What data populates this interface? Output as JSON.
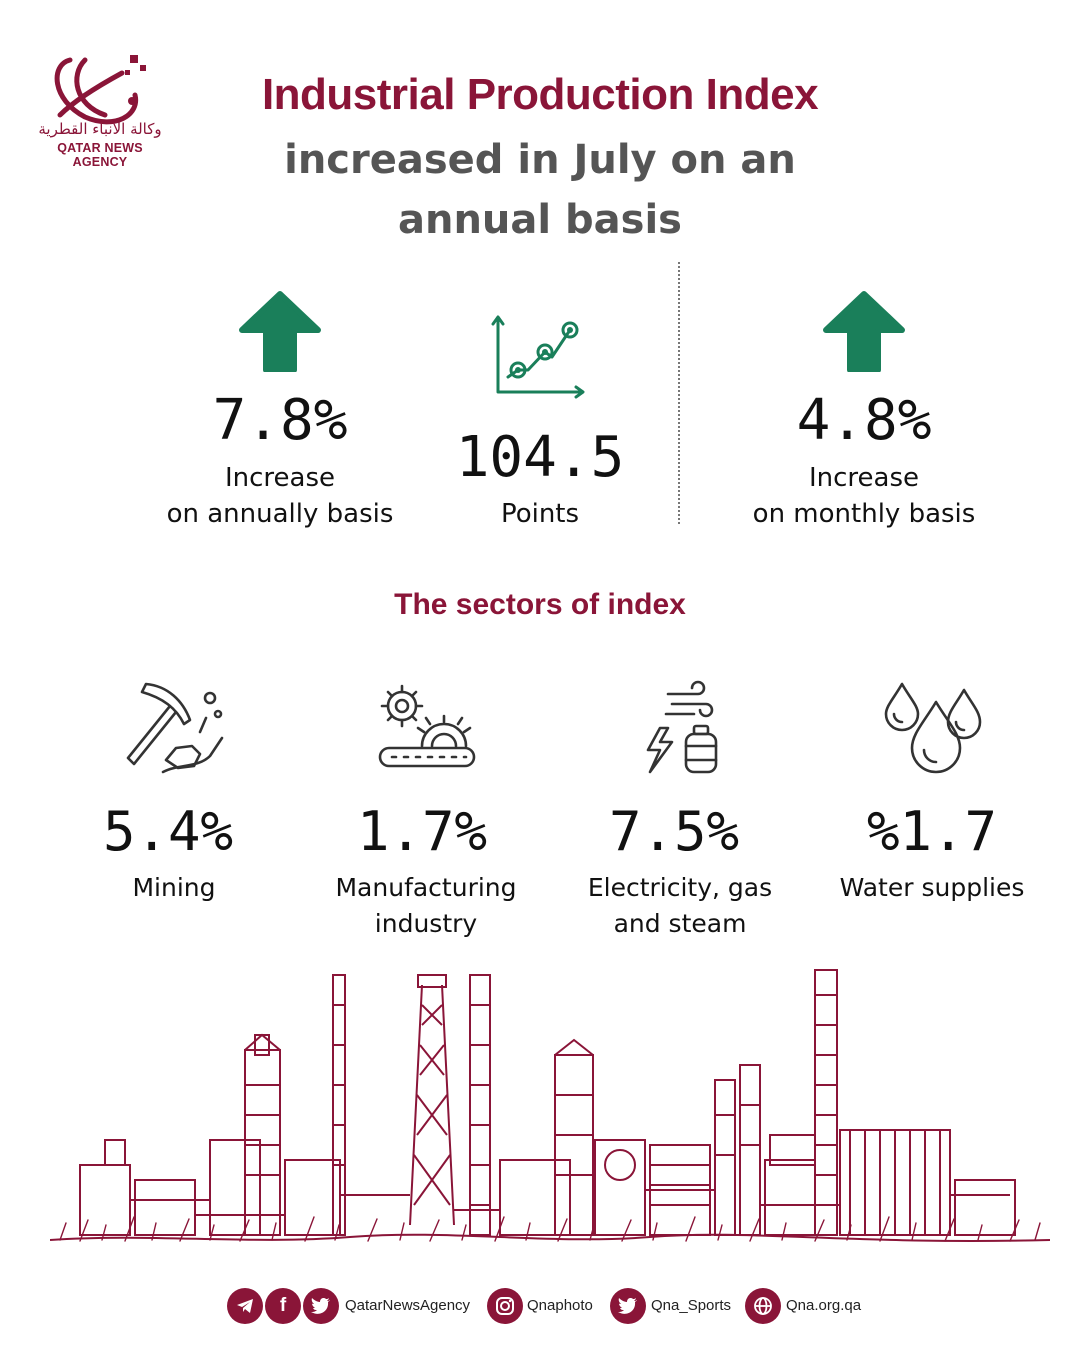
{
  "brand": {
    "name_ar": "وكالة الأنباء القطرية",
    "name_en": "QATAR NEWS AGENCY",
    "color": "#8a1538"
  },
  "headline": {
    "title": "Industrial Production Index",
    "subtitle_line1": "increased in July on an",
    "subtitle_line2": "annual basis"
  },
  "stats": {
    "annual": {
      "value": "7.8%",
      "label_line1": "Increase",
      "label_line2": "on annually basis",
      "icon": "up-arrow-icon"
    },
    "points": {
      "value": "104.5",
      "label": "Points",
      "icon": "growth-chart-icon"
    },
    "monthly": {
      "value": "4.8%",
      "label_line1": "Increase",
      "label_line2": "on monthly basis",
      "icon": "up-arrow-icon"
    },
    "accent_green": "#1a7f5a"
  },
  "sectors": {
    "title": "The sectors of index",
    "items": [
      {
        "value": "5.4%",
        "label_line1": "Mining",
        "label_line2": "",
        "icon": "pickaxe-icon"
      },
      {
        "value": "1.7%",
        "label_line1": "Manufacturing",
        "label_line2": "industry",
        "icon": "gears-conveyor-icon"
      },
      {
        "value": "7.5%",
        "label_line1": "Electricity, gas",
        "label_line2": "and steam",
        "icon": "energy-icon"
      },
      {
        "value": "%1.7",
        "label_line1": "Water supplies",
        "label_line2": "",
        "icon": "water-drops-icon"
      }
    ]
  },
  "footer": {
    "handle1": "QatarNewsAgency",
    "handle2": "Qnaphoto",
    "handle3": "Qna_Sports",
    "website": "Qna.org.qa"
  }
}
